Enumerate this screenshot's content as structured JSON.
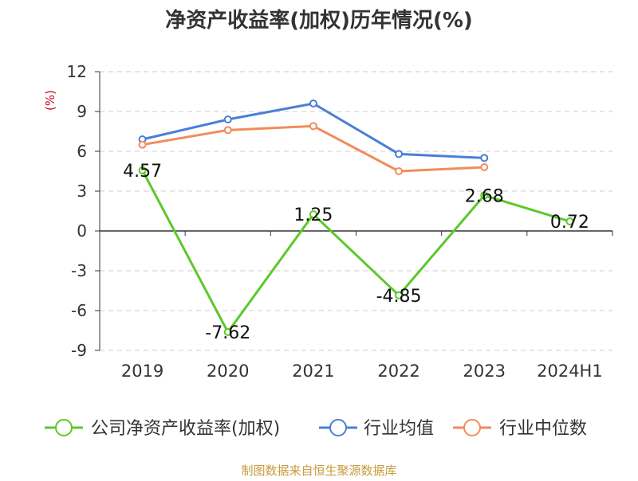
{
  "chart_data": {
    "type": "line",
    "title": "净资产收益率(加权)历年情况(%)",
    "ylabel": "(%)",
    "categories": [
      "2019",
      "2020",
      "2021",
      "2022",
      "2023",
      "2024H1"
    ],
    "ylim": [
      -9,
      12
    ],
    "yticks": [
      12,
      9,
      6,
      3,
      0,
      -3,
      -6,
      -9
    ],
    "grid": true,
    "legend_position": "bottom",
    "series": [
      {
        "name": "公司净资产收益率(加权)",
        "color": "#5cc82a",
        "values": [
          4.57,
          -7.62,
          1.25,
          -4.85,
          2.68,
          0.72
        ],
        "labels": [
          "4.57",
          "-7.62",
          "1.25",
          "-4.85",
          "2.68",
          "0.72"
        ]
      },
      {
        "name": "行业均值",
        "color": "#4a7fd6",
        "values": [
          6.9,
          8.4,
          9.6,
          5.8,
          5.5,
          null
        ]
      },
      {
        "name": "行业中位数",
        "color": "#f28c5a",
        "values": [
          6.5,
          7.6,
          7.9,
          4.5,
          4.8,
          null
        ]
      }
    ]
  },
  "footer": {
    "source": "制图数据来自恒生聚源数据库"
  }
}
